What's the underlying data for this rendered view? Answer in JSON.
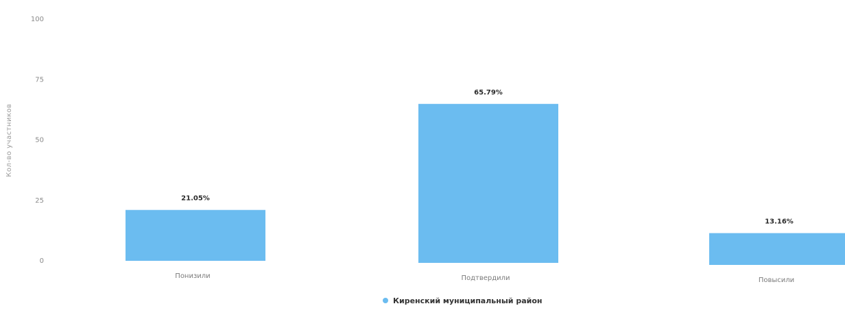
{
  "chart_data": {
    "type": "bar",
    "ylabel": "Кол-во участников",
    "ylim": [
      0,
      100
    ],
    "yticks": [
      0,
      25,
      50,
      75,
      100
    ],
    "categories": [
      "Понизили",
      "Подтвердили",
      "Повысили"
    ],
    "series": [
      {
        "name": "Киренский муниципальный район",
        "values": [
          21.05,
          65.79,
          13.16
        ],
        "labels": [
          "21.05%",
          "65.79%",
          "13.16%"
        ]
      }
    ],
    "grid": false,
    "legend": "bottom-center"
  },
  "colors": {
    "bar": "#6bbcf0",
    "legend_marker": "#6bbcf0"
  }
}
